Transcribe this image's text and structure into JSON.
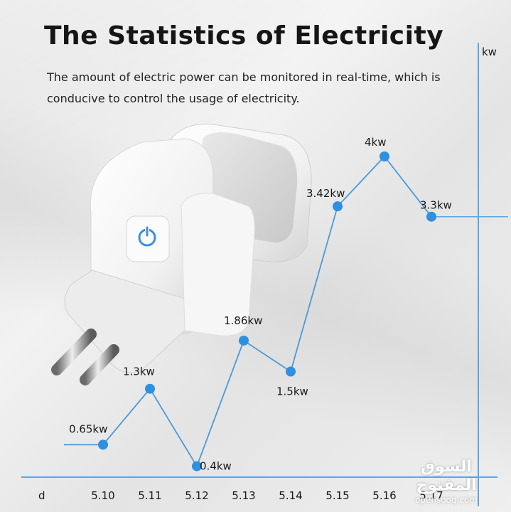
{
  "header": {
    "title": "The Statistics of Electricity",
    "subtitle": "The amount of electric power can be monitored in real-time, which is conducive to control the usage of electricity."
  },
  "colors": {
    "line": "#4a9ad8",
    "point": "#2f8fe0",
    "axis": "#5aa6e6",
    "text": "#1a1a1a"
  },
  "icons": [
    "smart-plug-image",
    "power-icon"
  ],
  "chart_data": {
    "type": "line",
    "xlabel": "d",
    "ylabel": "kw",
    "categories": [
      "5.10",
      "5.11",
      "5.12",
      "5.13",
      "5.14",
      "5.15",
      "5.16",
      "5.17"
    ],
    "values": [
      0.65,
      1.3,
      0.4,
      1.86,
      1.5,
      3.42,
      4,
      3.3
    ],
    "data_labels": [
      "0.65kw",
      "1.3kw",
      "0.4kw",
      "1.86kw",
      "1.5kw",
      "3.42kw",
      "4kw",
      "3.3kw"
    ],
    "grid": false,
    "legend": "none"
  },
  "watermark": {
    "arabic": "السوق المفتوح",
    "latin": "opensooq.com"
  }
}
